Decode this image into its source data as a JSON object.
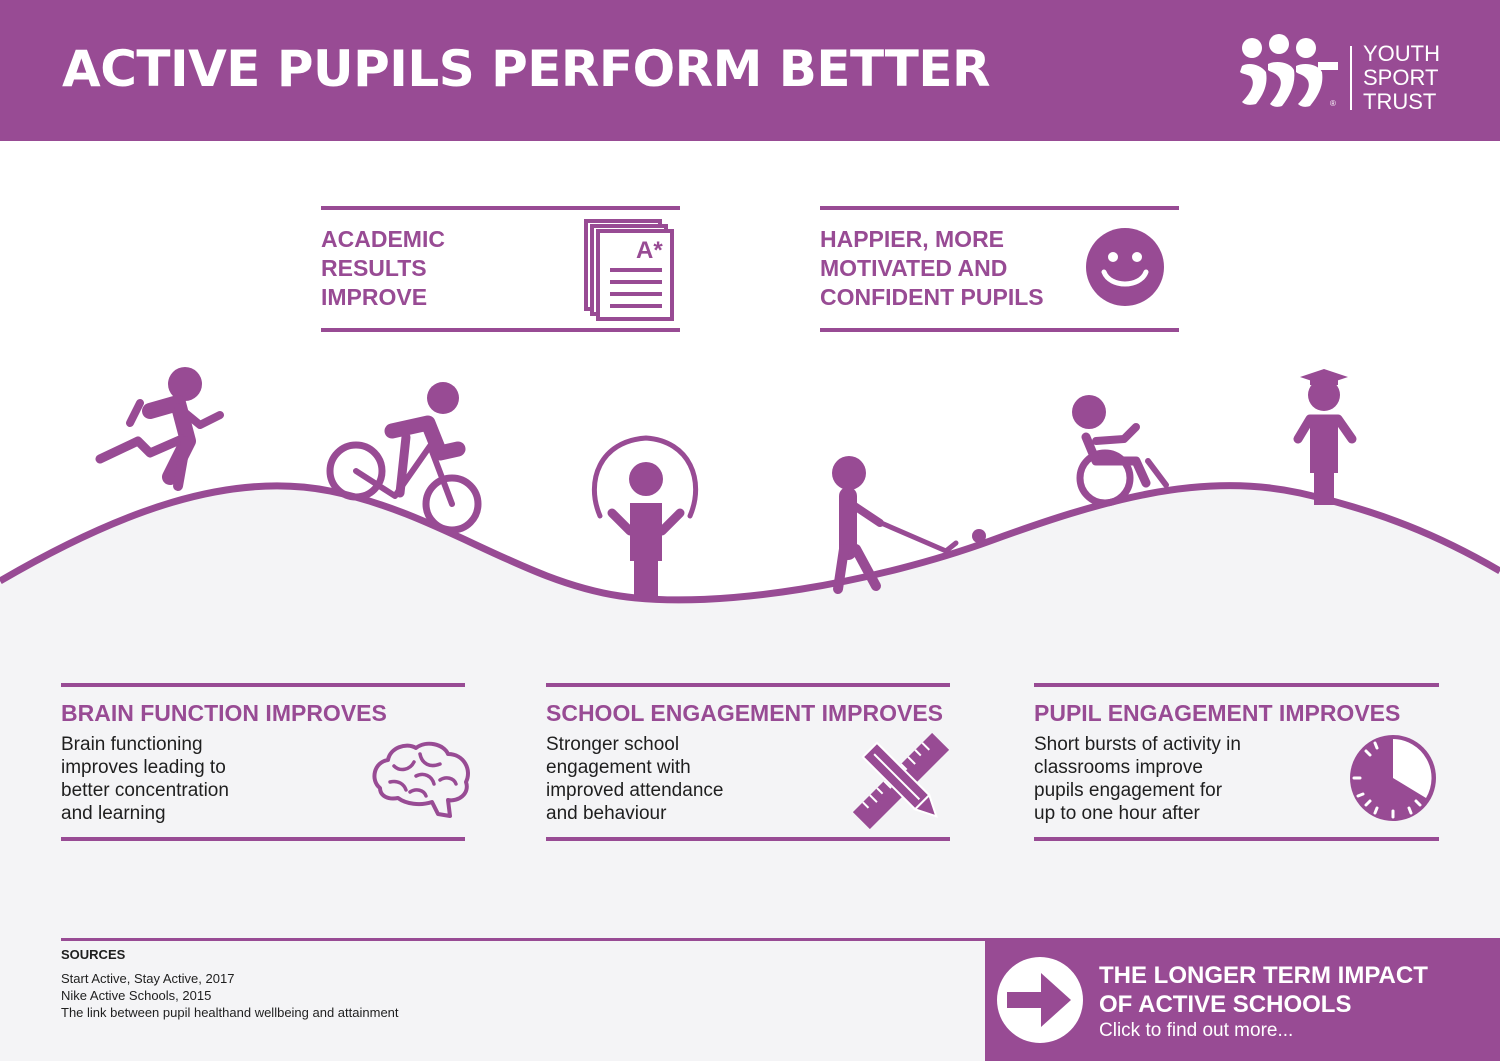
{
  "header": {
    "title": "ACTIVE PUPILS PERFORM BETTER",
    "logo_lines": [
      "YOUTH",
      "SPORT",
      "TRUST"
    ],
    "logo_mark": "®"
  },
  "top_benefits": [
    {
      "lines": [
        "ACADEMIC",
        "RESULTS",
        "IMPROVE"
      ],
      "icon": "graded-paper-icon",
      "grade": "A*"
    },
    {
      "lines": [
        "HAPPIER, MORE",
        "MOTIVATED AND",
        "CONFIDENT PUPILS"
      ],
      "icon": "smiley-face-icon"
    }
  ],
  "activities": [
    "running",
    "cycling",
    "skipping-rope",
    "hockey",
    "wheelchair",
    "graduate"
  ],
  "bottom_benefits": [
    {
      "title": "BRAIN FUNCTION IMPROVES",
      "lines": [
        "Brain functioning",
        "improves leading to",
        "better concentration",
        "and learning"
      ],
      "icon": "brain-icon"
    },
    {
      "title": "SCHOOL ENGAGEMENT IMPROVES",
      "lines": [
        "Stronger school",
        "engagement with",
        "improved attendance",
        "and behaviour"
      ],
      "icon": "pencil-ruler-icon"
    },
    {
      "title": "PUPIL ENGAGEMENT IMPROVES",
      "lines": [
        "Short bursts of activity in",
        "classrooms improve",
        "pupils engagement for",
        "up to one hour after"
      ],
      "icon": "clock-icon"
    }
  ],
  "sources": {
    "heading": "SOURCES",
    "items": [
      "Start Active, Stay Active, 2017",
      "Nike Active Schools, 2015",
      "The link between pupil healthand wellbeing and attainment"
    ]
  },
  "cta": {
    "lines": [
      "THE LONGER TERM IMPACT",
      "OF ACTIVE SCHOOLS"
    ],
    "subtitle": "Click to find out more..."
  },
  "colors": {
    "brand": "#984b94",
    "background": "#f4f4f6",
    "white": "#ffffff",
    "text": "#1f1f1f"
  }
}
